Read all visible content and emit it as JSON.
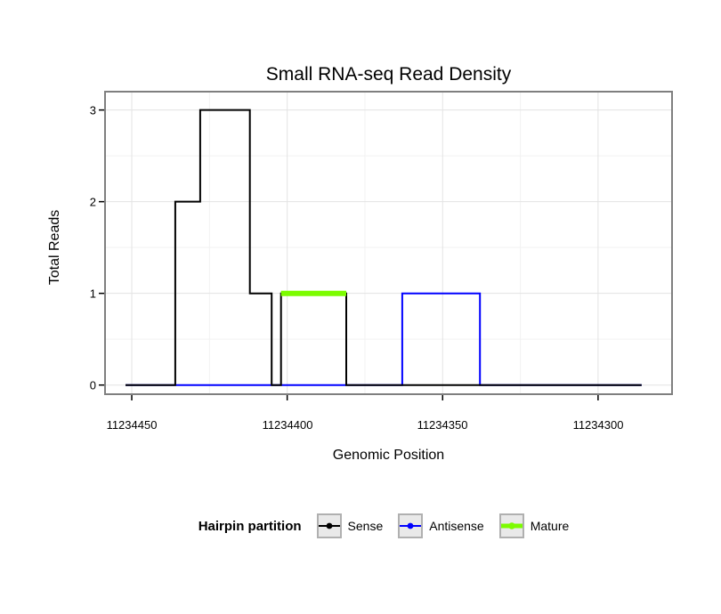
{
  "title": "Small RNA-seq Read Density",
  "axes": {
    "x": {
      "label": "Genomic Position",
      "ticks": [
        "11234450",
        "11234400",
        "11234350",
        "11234300"
      ]
    },
    "y": {
      "label": "Total Reads",
      "ticks": [
        "0",
        "1",
        "2",
        "3"
      ]
    }
  },
  "legend": {
    "title": "Hairpin partition",
    "items": [
      {
        "label": "Sense",
        "color": "#000000",
        "line_width": 2
      },
      {
        "label": "Antisense",
        "color": "#0000FF",
        "line_width": 2
      },
      {
        "label": "Mature",
        "color": "#7CFC00",
        "line_width": 5
      }
    ]
  },
  "chart_data": {
    "type": "line",
    "title": "Small RNA-seq Read Density",
    "xlabel": "Genomic Position",
    "ylabel": "Total Reads",
    "x_reversed": true,
    "x_domain": [
      11234458.6,
      11234276.2
    ],
    "y_domain": [
      -0.1,
      3.2
    ],
    "x_ticks": [
      11234450,
      11234400,
      11234350,
      11234300
    ],
    "x_minor": [
      11234425,
      11234375,
      11234325
    ],
    "y_ticks": [
      0,
      1,
      2,
      3
    ],
    "y_minor": [
      0.5,
      1.5,
      2.5
    ],
    "grid": true,
    "legend_position": "bottom",
    "series": [
      {
        "name": "Sense",
        "color": "#000000",
        "width": 2,
        "z": 2,
        "points": [
          [
            11234452,
            0
          ],
          [
            11234436,
            0
          ],
          [
            11234436,
            2
          ],
          [
            11234428,
            2
          ],
          [
            11234428,
            3
          ],
          [
            11234412,
            3
          ],
          [
            11234412,
            1
          ],
          [
            11234405,
            1
          ],
          [
            11234405,
            0
          ],
          [
            11234402,
            0
          ],
          [
            11234402,
            1
          ],
          [
            11234381,
            1
          ],
          [
            11234381,
            0
          ],
          [
            11234286,
            0
          ]
        ]
      },
      {
        "name": "Antisense",
        "color": "#0000FF",
        "width": 2,
        "z": 1,
        "points": [
          [
            11234452,
            0
          ],
          [
            11234363,
            0
          ],
          [
            11234363,
            1
          ],
          [
            11234338,
            1
          ],
          [
            11234338,
            0
          ],
          [
            11234286,
            0
          ]
        ]
      },
      {
        "name": "Mature",
        "color": "#7CFC00",
        "width": 6,
        "z": 3,
        "points": [
          [
            11234402,
            1
          ],
          [
            11234381,
            1
          ]
        ]
      }
    ]
  }
}
